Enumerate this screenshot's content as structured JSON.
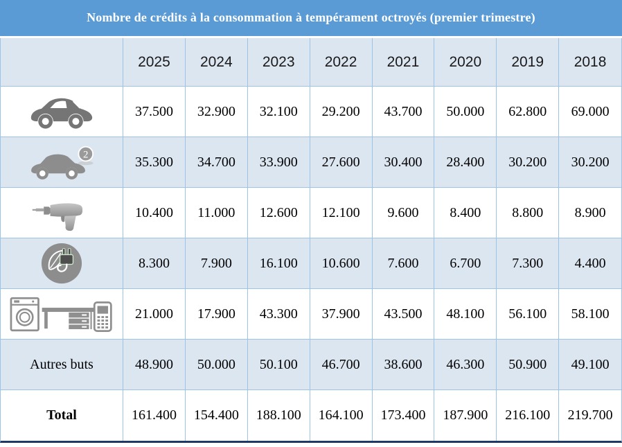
{
  "table": {
    "title": "Nombre de crédits à la consommation à tempérament octroyés (premier trimestre)",
    "columns": [
      "2025",
      "2024",
      "2023",
      "2022",
      "2021",
      "2020",
      "2019",
      "2018"
    ],
    "rows": [
      {
        "icon": "new-car-icon",
        "label": "",
        "bold": false,
        "values_display": [
          "37.500",
          "32.900",
          "32.100",
          "29.200",
          "43.700",
          "50.000",
          "62.800",
          "69.000"
        ]
      },
      {
        "icon": "used-car-icon",
        "label": "",
        "bold": false,
        "values_display": [
          "35.300",
          "34.700",
          "33.900",
          "27.600",
          "30.400",
          "28.400",
          "30.200",
          "30.200"
        ]
      },
      {
        "icon": "drill-icon",
        "label": "",
        "bold": false,
        "values_display": [
          "10.400",
          "11.000",
          "12.600",
          "12.100",
          "9.600",
          "8.400",
          "8.800",
          "8.900"
        ]
      },
      {
        "icon": "green-energy-icon",
        "label": "",
        "bold": false,
        "values_display": [
          "8.300",
          "7.900",
          "16.100",
          "10.600",
          "7.600",
          "6.700",
          "7.300",
          "4.400"
        ]
      },
      {
        "icon": "appliances-icon",
        "label": "",
        "bold": false,
        "values_display": [
          "21.000",
          "17.900",
          "43.300",
          "37.900",
          "43.500",
          "48.100",
          "56.100",
          "58.100"
        ]
      },
      {
        "icon": null,
        "label": "Autres buts",
        "bold": false,
        "values_display": [
          "48.900",
          "50.000",
          "50.100",
          "46.700",
          "38.600",
          "46.300",
          "50.900",
          "49.100"
        ]
      },
      {
        "icon": null,
        "label": "Total",
        "bold": true,
        "values_display": [
          "161.400",
          "154.400",
          "188.100",
          "164.100",
          "173.400",
          "187.900",
          "216.100",
          "219.700"
        ]
      }
    ],
    "used_car_badge": "2"
  },
  "colors": {
    "title_bar": "#5b9bd5",
    "header_row": "#dce6f1",
    "stripe": "#dce6f1",
    "grid_line": "#9dc3e6",
    "bottom_border": "#1f3864",
    "title_text": "#ffffff",
    "body_text": "#000000",
    "icon_gray": "#7f7f7f"
  },
  "chart_data": {
    "type": "table",
    "title": "Nombre de crédits à la consommation à tempérament octroyés (premier trimestre)",
    "columns": [
      2025,
      2024,
      2023,
      2022,
      2021,
      2020,
      2019,
      2018
    ],
    "rows": [
      {
        "row": "new-car-icon",
        "values": [
          37500,
          32900,
          32100,
          29200,
          43700,
          50000,
          62800,
          69000
        ]
      },
      {
        "row": "used-car-icon",
        "values": [
          35300,
          34700,
          33900,
          27600,
          30400,
          28400,
          30200,
          30200
        ]
      },
      {
        "row": "drill-icon",
        "values": [
          10400,
          11000,
          12600,
          12100,
          9600,
          8400,
          8800,
          8900
        ]
      },
      {
        "row": "green-energy-icon",
        "values": [
          8300,
          7900,
          16100,
          10600,
          7600,
          6700,
          7300,
          4400
        ]
      },
      {
        "row": "appliances-icon",
        "values": [
          21000,
          17900,
          43300,
          37900,
          43500,
          48100,
          56100,
          58100
        ]
      },
      {
        "row": "Autres buts",
        "values": [
          48900,
          50000,
          50100,
          46700,
          38600,
          46300,
          50900,
          49100
        ]
      },
      {
        "row": "Total",
        "values": [
          161400,
          154400,
          188100,
          164100,
          173400,
          187900,
          216100,
          219700
        ]
      }
    ]
  }
}
